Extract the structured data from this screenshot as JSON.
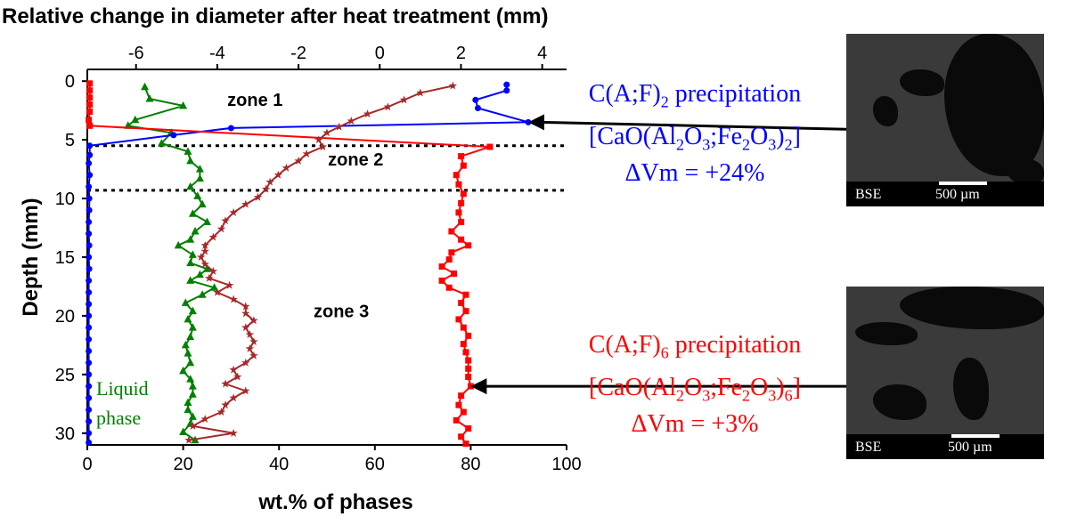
{
  "chart_data": {
    "type": "line",
    "title": "Relative change in diameter after heat treatment (mm)",
    "xlabel": "wt.% of phases",
    "ylabel": "Depth (mm)",
    "xlim_bottom": [
      0,
      100
    ],
    "xticks_bottom": [
      "0",
      "20",
      "40",
      "60",
      "80",
      "100"
    ],
    "xlim_top": [
      -7.2,
      4.6
    ],
    "xticks_top": [
      "-6",
      "-4",
      "-2",
      "0",
      "2",
      "4"
    ],
    "ylim": [
      -1,
      31
    ],
    "yticks": [
      "0",
      "5",
      "10",
      "15",
      "20",
      "25",
      "30"
    ],
    "y_inverted": true,
    "zone_lines_depth": [
      5.5,
      9.3
    ],
    "zone_labels": [
      "zone 1",
      "zone 2",
      "zone 3"
    ],
    "series": [
      {
        "name": "Liquid phase",
        "color": "#008000",
        "marker": "triangle",
        "axis": "bottom",
        "points": [
          [
            12,
            0.5
          ],
          [
            13,
            1.5
          ],
          [
            20,
            2.1
          ],
          [
            10,
            3.3
          ],
          [
            8.5,
            3.8
          ],
          [
            17.5,
            4.4
          ],
          [
            15.5,
            5.3
          ],
          [
            21,
            6.0
          ],
          [
            21.5,
            6.8
          ],
          [
            23.5,
            7.5
          ],
          [
            23.5,
            8.3
          ],
          [
            21.5,
            9.0
          ],
          [
            23,
            9.8
          ],
          [
            24,
            10.5
          ],
          [
            22,
            11.3
          ],
          [
            25,
            12.0
          ],
          [
            22.5,
            12.8
          ],
          [
            21.5,
            13.5
          ],
          [
            19,
            14.0
          ],
          [
            22,
            14.8
          ],
          [
            21.5,
            15.5
          ],
          [
            25,
            16.0
          ],
          [
            23.5,
            16.5
          ],
          [
            21.5,
            17.0
          ],
          [
            26.5,
            17.6
          ],
          [
            24,
            18.2
          ],
          [
            20.5,
            18.9
          ],
          [
            22,
            19.6
          ],
          [
            21,
            20.3
          ],
          [
            22,
            21.0
          ],
          [
            21.5,
            21.8
          ],
          [
            20.5,
            22.5
          ],
          [
            21,
            23.2
          ],
          [
            21.5,
            24.0
          ],
          [
            20,
            24.7
          ],
          [
            21.5,
            25.4
          ],
          [
            22,
            26.0
          ],
          [
            22,
            26.7
          ],
          [
            21,
            27.4
          ],
          [
            21,
            28.0
          ],
          [
            22,
            28.6
          ],
          [
            21.5,
            29.2
          ],
          [
            20,
            29.9
          ],
          [
            22.5,
            30.6
          ]
        ]
      },
      {
        "name": "C(A;F)2",
        "color": "#0000ff",
        "marker": "circle",
        "axis": "bottom",
        "points": [
          [
            87.5,
            0.3
          ],
          [
            87.5,
            0.8
          ],
          [
            81,
            1.6
          ],
          [
            81.5,
            2.3
          ],
          [
            92,
            3.5
          ],
          [
            30,
            4.0
          ],
          [
            18,
            4.6
          ],
          [
            0.5,
            5.5
          ],
          [
            0.5,
            6.3
          ],
          [
            0.3,
            7
          ],
          [
            0.5,
            8
          ],
          [
            0.3,
            9
          ],
          [
            0.4,
            10
          ],
          [
            0.4,
            11
          ],
          [
            0.3,
            12
          ],
          [
            0.3,
            13
          ],
          [
            0.4,
            14
          ],
          [
            0.3,
            15
          ],
          [
            0.4,
            16
          ],
          [
            0.3,
            17
          ],
          [
            0.3,
            18
          ],
          [
            0.3,
            19
          ],
          [
            0.3,
            20
          ],
          [
            0.3,
            21
          ],
          [
            0.3,
            22
          ],
          [
            0.3,
            23
          ],
          [
            0.3,
            24
          ],
          [
            0.3,
            25
          ],
          [
            0.3,
            26
          ],
          [
            0.3,
            27
          ],
          [
            0.3,
            28
          ],
          [
            0.3,
            29
          ],
          [
            0.3,
            30
          ],
          [
            0.3,
            30.8
          ]
        ]
      },
      {
        "name": "C(A;F)6",
        "color": "#ff0000",
        "marker": "square",
        "axis": "bottom",
        "points": [
          [
            0.5,
            0.2
          ],
          [
            0.5,
            0.8
          ],
          [
            0.5,
            1.4
          ],
          [
            0.5,
            2.0
          ],
          [
            0.5,
            2.6
          ],
          [
            0.3,
            3.3
          ],
          [
            0.5,
            3.8
          ],
          [
            84,
            5.6
          ],
          [
            78,
            6.4
          ],
          [
            78.5,
            7.2
          ],
          [
            77,
            8.0
          ],
          [
            77.5,
            8.8
          ],
          [
            78.5,
            9.6
          ],
          [
            78,
            10.4
          ],
          [
            77.5,
            11.2
          ],
          [
            78,
            12.0
          ],
          [
            76,
            12.8
          ],
          [
            78,
            13.5
          ],
          [
            79.5,
            14.0
          ],
          [
            76,
            14.6
          ],
          [
            75.5,
            15.2
          ],
          [
            74,
            15.8
          ],
          [
            76.5,
            16.4
          ],
          [
            74,
            17.0
          ],
          [
            75.5,
            17.6
          ],
          [
            79,
            18.2
          ],
          [
            78,
            18.9
          ],
          [
            79,
            19.6
          ],
          [
            77.5,
            20.3
          ],
          [
            78.5,
            21.0
          ],
          [
            79.5,
            21.7
          ],
          [
            78.5,
            22.4
          ],
          [
            79,
            23.1
          ],
          [
            79.5,
            23.8
          ],
          [
            79.5,
            24.5
          ],
          [
            79.5,
            25.2
          ],
          [
            80,
            26.0
          ],
          [
            78,
            26.8
          ],
          [
            77.5,
            27.6
          ],
          [
            78.5,
            28.2
          ],
          [
            77,
            28.9
          ],
          [
            79.5,
            29.6
          ],
          [
            78,
            30.3
          ],
          [
            79,
            30.9
          ]
        ]
      },
      {
        "name": "Relative change in diameter",
        "color": "#a52a2a",
        "marker": "star",
        "axis": "top",
        "points": [
          [
            1.8,
            0.4
          ],
          [
            1.0,
            1.0
          ],
          [
            0.6,
            1.6
          ],
          [
            0.2,
            2.2
          ],
          [
            -0.3,
            2.8
          ],
          [
            -0.7,
            3.4
          ],
          [
            -1.0,
            3.9
          ],
          [
            -1.3,
            4.4
          ],
          [
            -1.5,
            5.0
          ],
          [
            -1.4,
            5.6
          ],
          [
            -1.8,
            6.2
          ],
          [
            -2.0,
            6.8
          ],
          [
            -2.3,
            7.4
          ],
          [
            -2.5,
            8.0
          ],
          [
            -2.7,
            8.6
          ],
          [
            -2.8,
            9.2
          ],
          [
            -3.0,
            9.9
          ],
          [
            -3.3,
            10.5
          ],
          [
            -3.6,
            11.2
          ],
          [
            -3.8,
            11.9
          ],
          [
            -3.9,
            12.6
          ],
          [
            -4.1,
            13.3
          ],
          [
            -4.3,
            14.0
          ],
          [
            -4.3,
            14.5
          ],
          [
            -4.4,
            15.0
          ],
          [
            -4.3,
            15.6
          ],
          [
            -4.1,
            16.2
          ],
          [
            -4.2,
            16.8
          ],
          [
            -3.7,
            17.4
          ],
          [
            -4.0,
            18.0
          ],
          [
            -3.6,
            18.6
          ],
          [
            -3.3,
            19.2
          ],
          [
            -3.3,
            19.8
          ],
          [
            -3.1,
            20.4
          ],
          [
            -3.3,
            21.0
          ],
          [
            -3.2,
            21.6
          ],
          [
            -3.1,
            22.2
          ],
          [
            -3.2,
            22.8
          ],
          [
            -3.1,
            23.4
          ],
          [
            -3.3,
            24.0
          ],
          [
            -3.6,
            24.6
          ],
          [
            -3.5,
            25.2
          ],
          [
            -3.8,
            25.8
          ],
          [
            -3.3,
            26.4
          ],
          [
            -3.6,
            27.0
          ],
          [
            -3.8,
            27.6
          ],
          [
            -3.9,
            28.2
          ],
          [
            -4.3,
            28.8
          ],
          [
            -4.6,
            29.4
          ],
          [
            -3.6,
            30.0
          ],
          [
            -4.7,
            30.6
          ]
        ]
      }
    ],
    "legend_text": [
      "Liquid",
      "phase"
    ],
    "annotations": {
      "top": {
        "line1": "C(A;F)2 precipitation",
        "line2": "[CaO(Al2O3;Fe2O3)2]",
        "line3": "ΔVm = +24%",
        "color": "#0000ff",
        "arrow_target": [
          92,
          3.5
        ]
      },
      "bottom": {
        "line1": "C(A;F)6 precipitation",
        "line2": "[CaO(Al2O3;Fe2O3)6]",
        "line3": "ΔVm = +3%",
        "color": "#ff0000",
        "arrow_target": [
          80,
          26
        ]
      }
    }
  },
  "micrographs": [
    {
      "label": "BSE",
      "scale": "500 µm"
    },
    {
      "label": "BSE",
      "scale": "500 µm"
    }
  ]
}
